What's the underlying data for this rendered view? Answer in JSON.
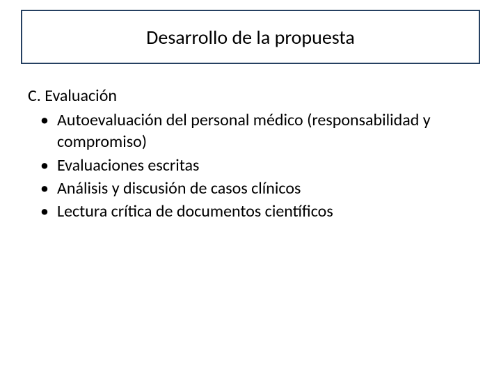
{
  "title": "Desarrollo de la propuesta",
  "section_heading": "C. Evaluación",
  "bullets": [
    "Autoevaluación del personal médico (responsabilidad y compromiso)",
    "Evaluaciones escritas",
    "Análisis y discusión de casos clínicos",
    "Lectura crítica de documentos científicos"
  ],
  "colors": {
    "border": "#254061",
    "background": "#ffffff",
    "text": "#000000"
  },
  "typography": {
    "title_fontsize": 28,
    "body_fontsize": 24,
    "font_family": "Calibri"
  }
}
